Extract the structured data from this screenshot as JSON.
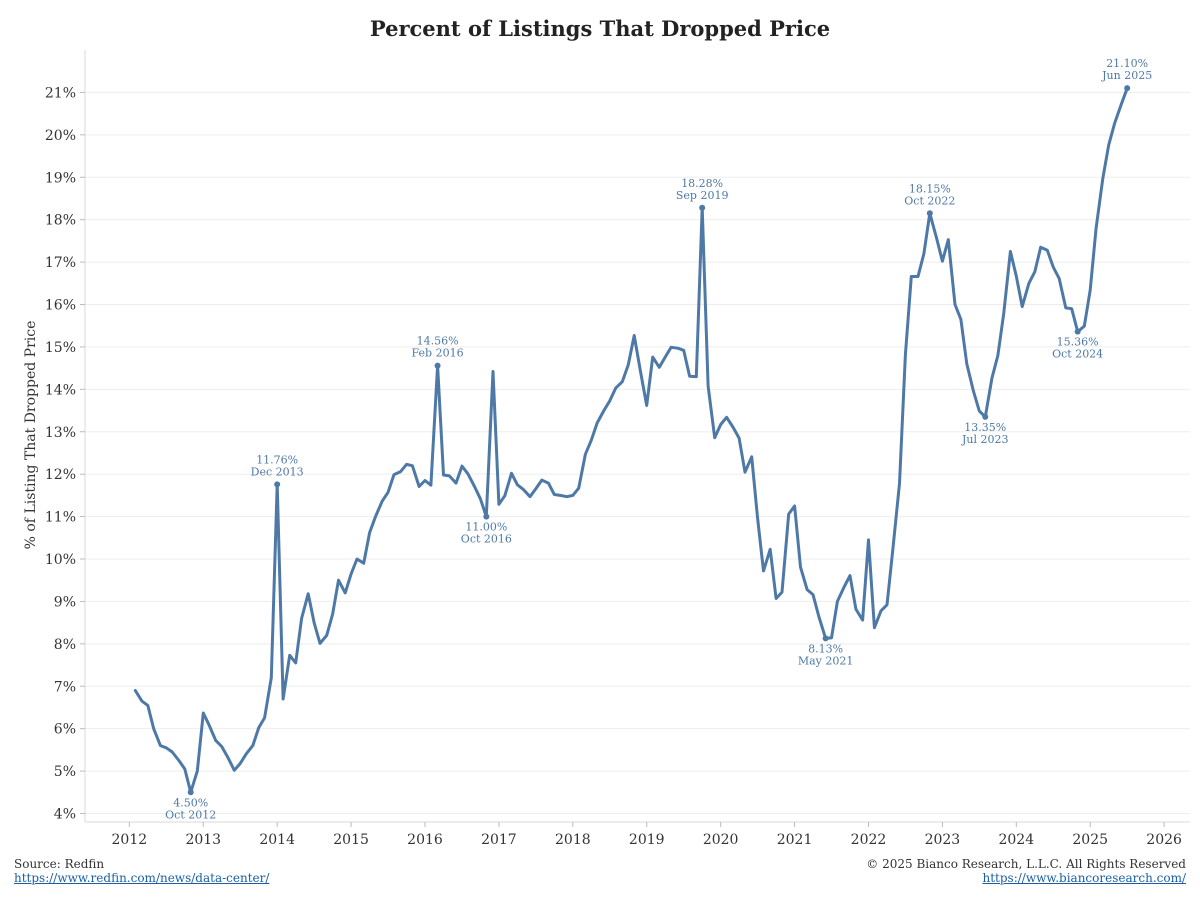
{
  "chart_data": {
    "type": "line",
    "title": "Percent of Listings That Dropped Price",
    "ylabel": "% of Listing That Dropped Price",
    "xlabel": "",
    "ylim": [
      3.8,
      22.0
    ],
    "xlim": [
      2011.4,
      2026.35
    ],
    "x_ticks": [
      "2012",
      "2013",
      "2014",
      "2015",
      "2016",
      "2017",
      "2018",
      "2019",
      "2020",
      "2021",
      "2022",
      "2023",
      "2024",
      "2025",
      "2026"
    ],
    "y_ticks": [
      "4%",
      "5%",
      "6%",
      "7%",
      "8%",
      "9%",
      "10%",
      "11%",
      "12%",
      "13%",
      "14%",
      "15%",
      "16%",
      "17%",
      "18%",
      "19%",
      "20%",
      "21%"
    ],
    "grid": true,
    "line_color": "#4e79a7",
    "series": [
      {
        "x": [
          2012.08,
          2012.17,
          2012.25,
          2012.33,
          2012.42,
          2012.5,
          2012.58,
          2012.67,
          2012.75,
          2012.83,
          2012.92,
          2013.0,
          2013.08,
          2013.17,
          2013.25,
          2013.33,
          2013.42,
          2013.5,
          2013.58,
          2013.67,
          2013.75,
          2013.83,
          2013.92,
          2014.0,
          2014.08,
          2014.17,
          2014.25,
          2014.33,
          2014.42,
          2014.5,
          2014.58,
          2014.67,
          2014.75,
          2014.83,
          2014.92,
          2015.0,
          2015.08,
          2015.17,
          2015.25,
          2015.33,
          2015.42,
          2015.5,
          2015.58,
          2015.67,
          2015.75,
          2015.83,
          2015.92,
          2016.0,
          2016.08,
          2016.17,
          2016.25,
          2016.33,
          2016.42,
          2016.5,
          2016.58,
          2016.67,
          2016.75,
          2016.83,
          2016.92,
          2017.0,
          2017.08,
          2017.17,
          2017.25,
          2017.33,
          2017.42,
          2017.5,
          2017.58,
          2017.67,
          2017.75,
          2017.83,
          2017.92,
          2018.0,
          2018.08,
          2018.17,
          2018.25,
          2018.33,
          2018.42,
          2018.5,
          2018.58,
          2018.67,
          2018.75,
          2018.83,
          2018.92,
          2019.0,
          2019.08,
          2019.17,
          2019.25,
          2019.33,
          2019.42,
          2019.5,
          2019.58,
          2019.67,
          2019.75,
          2019.83,
          2019.92,
          2020.0,
          2020.08,
          2020.17,
          2020.25,
          2020.33,
          2020.42,
          2020.5,
          2020.58,
          2020.67,
          2020.75,
          2020.83,
          2020.92,
          2021.0,
          2021.08,
          2021.17,
          2021.25,
          2021.33,
          2021.42,
          2021.5,
          2021.58,
          2021.67,
          2021.75,
          2021.83,
          2021.92,
          2022.0,
          2022.08,
          2022.17,
          2022.25,
          2022.33,
          2022.42,
          2022.5,
          2022.58,
          2022.67,
          2022.75,
          2022.83,
          2022.92,
          2023.0,
          2023.08,
          2023.17,
          2023.25,
          2023.33,
          2023.42,
          2023.5,
          2023.58,
          2023.67,
          2023.75,
          2023.83,
          2023.92,
          2024.0,
          2024.08,
          2024.17,
          2024.25,
          2024.33,
          2024.42,
          2024.5,
          2024.58,
          2024.67,
          2024.75,
          2024.83,
          2024.92,
          2025.0,
          2025.08,
          2025.17,
          2025.25,
          2025.33,
          2025.42,
          2025.5
        ],
        "y": [
          6.9,
          6.65,
          6.55,
          6.0,
          5.6,
          5.55,
          5.45,
          5.25,
          5.05,
          4.5,
          5.0,
          6.37,
          6.08,
          5.72,
          5.58,
          5.33,
          5.02,
          5.18,
          5.4,
          5.6,
          6.02,
          6.26,
          7.2,
          11.76,
          6.7,
          7.73,
          7.55,
          8.6,
          9.18,
          8.5,
          8.01,
          8.2,
          8.7,
          9.5,
          9.2,
          9.65,
          10.0,
          9.9,
          10.62,
          11.0,
          11.36,
          11.57,
          11.99,
          12.06,
          12.23,
          12.2,
          11.71,
          11.85,
          11.74,
          14.56,
          11.98,
          11.96,
          11.79,
          12.19,
          12.01,
          11.71,
          11.42,
          11.0,
          14.42,
          11.29,
          11.49,
          12.02,
          11.75,
          11.64,
          11.47,
          11.66,
          11.86,
          11.79,
          11.52,
          11.5,
          11.47,
          11.5,
          11.67,
          12.47,
          12.8,
          13.21,
          13.5,
          13.73,
          14.03,
          14.18,
          14.58,
          15.27,
          14.38,
          13.62,
          14.76,
          14.52,
          14.76,
          14.99,
          14.97,
          14.92,
          14.31,
          14.3,
          18.28,
          14.08,
          12.86,
          13.17,
          13.34,
          13.1,
          12.85,
          12.05,
          12.41,
          10.96,
          9.72,
          10.23,
          9.07,
          9.22,
          11.06,
          11.25,
          9.81,
          9.28,
          9.16,
          8.63,
          8.13,
          8.14,
          9.0,
          9.34,
          9.61,
          8.82,
          8.56,
          10.45,
          8.38,
          8.78,
          8.92,
          10.24,
          11.78,
          14.82,
          16.66,
          16.66,
          17.2,
          18.15,
          17.57,
          17.02,
          17.53,
          16.0,
          15.65,
          14.6,
          13.96,
          13.49,
          13.35,
          14.26,
          14.79,
          15.78,
          17.25,
          16.67,
          15.95,
          16.5,
          16.77,
          17.35,
          17.28,
          16.88,
          16.61,
          15.92,
          15.9,
          15.36,
          15.49,
          16.34,
          17.8,
          18.97,
          19.76,
          20.27,
          20.72,
          21.1
        ]
      }
    ],
    "annotations": [
      {
        "x": 2012.83,
        "y": 4.5,
        "value": "4.50%",
        "date": "Oct 2012",
        "pos": "below"
      },
      {
        "x": 2014.0,
        "y": 11.76,
        "value": "11.76%",
        "date": "Dec 2013",
        "pos": "above"
      },
      {
        "x": 2016.17,
        "y": 14.56,
        "value": "14.56%",
        "date": "Feb 2016",
        "pos": "above"
      },
      {
        "x": 2016.83,
        "y": 11.0,
        "value": "11.00%",
        "date": "Oct 2016",
        "pos": "below"
      },
      {
        "x": 2019.75,
        "y": 18.28,
        "value": "18.28%",
        "date": "Sep 2019",
        "pos": "above"
      },
      {
        "x": 2021.42,
        "y": 8.13,
        "value": "8.13%",
        "date": "May 2021",
        "pos": "below"
      },
      {
        "x": 2022.83,
        "y": 18.15,
        "value": "18.15%",
        "date": "Oct 2022",
        "pos": "above"
      },
      {
        "x": 2023.58,
        "y": 13.35,
        "value": "13.35%",
        "date": "Jul 2023",
        "pos": "below"
      },
      {
        "x": 2024.83,
        "y": 15.36,
        "value": "15.36%",
        "date": "Oct 2024",
        "pos": "below"
      },
      {
        "x": 2025.5,
        "y": 21.1,
        "value": "21.10%",
        "date": "Jun 2025",
        "pos": "above"
      }
    ]
  },
  "footer": {
    "source_label": "Source: Redfin",
    "source_url": "https://www.redfin.com/news/data-center/",
    "copyright": "© 2025 Bianco Research, L.L.C. All Rights Reserved",
    "site_url": "https://www.biancoresearch.com/"
  }
}
